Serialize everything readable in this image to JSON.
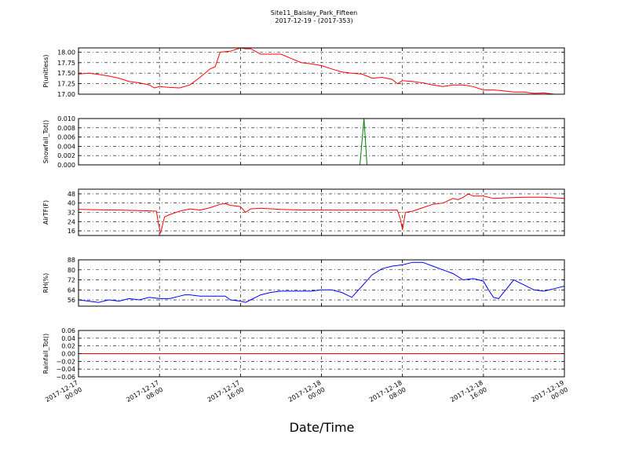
{
  "chart_data": {
    "type": "line",
    "title": "Site11_Baisley_Park_Fifteen",
    "subtitle": "2017-12-19 - (2017-353)",
    "xlabel": "Date/Time",
    "x_ticks": [
      {
        "line1": "2017-12-17",
        "line2": "00:00"
      },
      {
        "line1": "2017-12-17",
        "line2": "08:00"
      },
      {
        "line1": "2017-12-17",
        "line2": "16:00"
      },
      {
        "line1": "2017-12-18",
        "line2": "00:00"
      },
      {
        "line1": "2017-12-18",
        "line2": "08:00"
      },
      {
        "line1": "2017-12-18",
        "line2": "16:00"
      },
      {
        "line1": "2017-12-19",
        "line2": "00:00"
      }
    ],
    "xlim_hours": [
      0,
      48
    ],
    "grid": true,
    "panels": [
      {
        "ylabel": "P(unitless)",
        "color": "#ff0000",
        "ylim": [
          17.0,
          18.1
        ],
        "yticks": [
          "17.00",
          "17.25",
          "17.50",
          "17.75",
          "18.00"
        ],
        "ytick_values": [
          17.0,
          17.25,
          17.5,
          17.75,
          18.0
        ],
        "x": [
          0,
          1,
          2,
          3,
          4,
          5,
          6,
          7,
          7.5,
          8,
          9,
          10,
          11,
          12,
          12.5,
          13,
          13.5,
          14,
          15,
          16,
          16.5,
          17,
          18,
          19,
          20,
          21,
          22,
          23,
          24,
          25,
          26,
          27,
          28,
          29,
          30,
          31,
          31.5,
          32,
          33,
          34,
          35,
          36,
          37,
          38,
          39,
          40,
          41,
          42,
          43,
          44,
          45,
          46,
          47,
          48
        ],
        "y": [
          17.48,
          17.5,
          17.47,
          17.43,
          17.38,
          17.3,
          17.27,
          17.22,
          17.15,
          17.18,
          17.16,
          17.15,
          17.22,
          17.4,
          17.5,
          17.6,
          17.65,
          18.0,
          18.02,
          18.1,
          18.08,
          18.08,
          17.95,
          17.95,
          17.95,
          17.85,
          17.75,
          17.72,
          17.68,
          17.6,
          17.53,
          17.5,
          17.48,
          17.38,
          17.4,
          17.35,
          17.25,
          17.32,
          17.3,
          17.27,
          17.22,
          17.18,
          17.22,
          17.22,
          17.18,
          17.1,
          17.1,
          17.08,
          17.05,
          17.05,
          17.02,
          17.03,
          17.0,
          17.0
        ]
      },
      {
        "ylabel": "Snowfall_Tot()",
        "color": "#008000",
        "ylim": [
          0.0,
          0.01
        ],
        "yticks": [
          "0.000",
          "0.002",
          "0.004",
          "0.006",
          "0.008",
          "0.010"
        ],
        "ytick_values": [
          0.0,
          0.002,
          0.004,
          0.006,
          0.008,
          0.01
        ],
        "x": [
          0,
          27.8,
          28.2,
          28.5,
          48
        ],
        "y": [
          0.0,
          0.0,
          0.01,
          0.0,
          0.0
        ]
      },
      {
        "ylabel": "AirTF(F)",
        "color": "#ff0000",
        "ylim": [
          12,
          52
        ],
        "yticks": [
          "16",
          "24",
          "32",
          "40",
          "48"
        ],
        "ytick_values": [
          16,
          24,
          32,
          40,
          48
        ],
        "x": [
          0,
          2,
          4,
          6,
          7.7,
          7.9,
          8.1,
          8.5,
          9,
          10,
          11,
          12,
          13,
          14,
          14.5,
          15,
          16,
          16.5,
          17,
          18,
          20,
          22,
          24,
          26,
          28,
          30,
          31.5,
          31.8,
          32,
          32.3,
          33,
          34,
          35,
          36,
          37,
          37.5,
          38,
          38.5,
          39,
          40,
          41,
          42,
          44,
          46,
          48
        ],
        "y": [
          34.5,
          34.2,
          34,
          33.5,
          33,
          22,
          14,
          28,
          30,
          33,
          35,
          34,
          36,
          39,
          39.5,
          38,
          37,
          32,
          35,
          35.5,
          34.5,
          34,
          34,
          33.8,
          34,
          33.8,
          34,
          26,
          17,
          32,
          33,
          36,
          39,
          40,
          44,
          43,
          45,
          48,
          46,
          46,
          44,
          44.5,
          45,
          45,
          44
        ]
      },
      {
        "ylabel": "RH(%)",
        "color": "#0000ff",
        "ylim": [
          51,
          88
        ],
        "yticks": [
          "56",
          "64",
          "72",
          "80",
          "88"
        ],
        "ytick_values": [
          56,
          64,
          72,
          80,
          88
        ],
        "x": [
          0,
          1,
          2,
          3,
          4,
          5,
          6,
          7,
          8,
          9,
          10,
          10.5,
          11,
          12,
          13,
          14,
          14.5,
          15,
          16,
          16.5,
          17,
          18,
          19,
          20,
          21,
          22,
          23,
          24,
          25,
          26,
          27,
          28,
          29,
          30,
          31,
          32,
          33,
          34,
          35,
          36,
          37,
          38,
          39,
          40,
          40.5,
          41,
          41.5,
          42,
          43,
          44,
          45,
          46,
          47,
          48
        ],
        "y": [
          56,
          55,
          54,
          56,
          55,
          57,
          56,
          58,
          57,
          57,
          59,
          60,
          60,
          59,
          59,
          59,
          59,
          56,
          55,
          54,
          56,
          60,
          62,
          63,
          63,
          63,
          63,
          64,
          64,
          62,
          58,
          67,
          76,
          81,
          83,
          84,
          86,
          86,
          83,
          80,
          77,
          72,
          73,
          71,
          64,
          58,
          57,
          62,
          72,
          68,
          64,
          63,
          65,
          67
        ]
      },
      {
        "ylabel": "Rainfall_Tot()",
        "color": "#ff0000",
        "ylim": [
          -0.06,
          0.06
        ],
        "yticks": [
          "−0.06",
          "−0.04",
          "−0.02",
          "0.00",
          "0.02",
          "0.04",
          "0.06"
        ],
        "ytick_values": [
          -0.06,
          -0.04,
          -0.02,
          0.0,
          0.02,
          0.04,
          0.06
        ],
        "x": [
          0,
          48
        ],
        "y": [
          0.0,
          0.0
        ]
      }
    ]
  }
}
